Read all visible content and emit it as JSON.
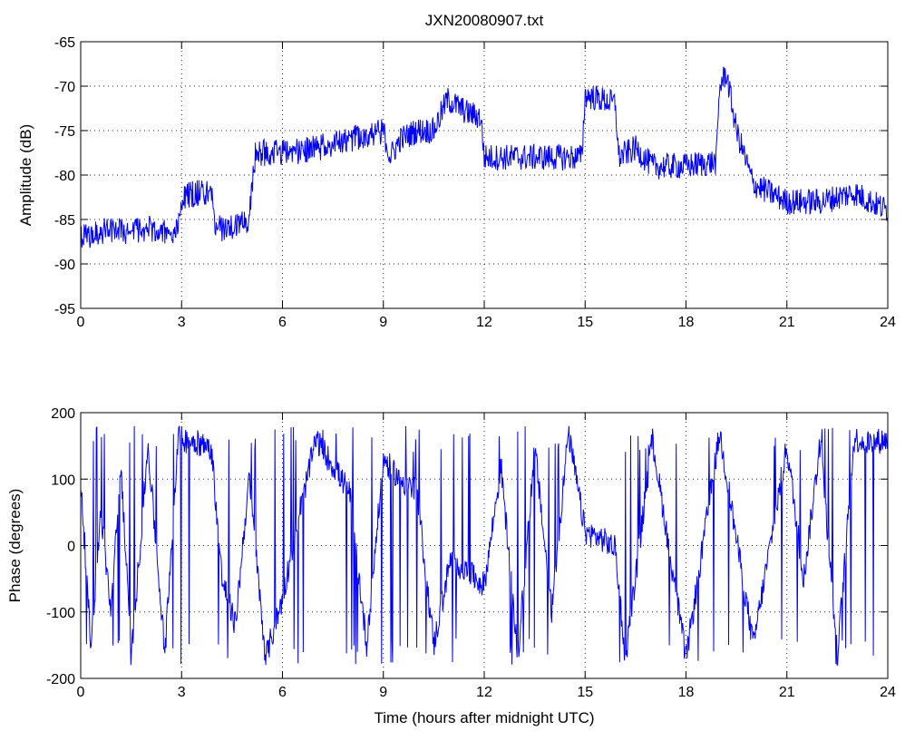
{
  "chart_data": [
    {
      "type": "line",
      "title": "JXN20080907.txt",
      "xlabel": "",
      "ylabel": "Amplitude (dB)",
      "xlim": [
        0,
        24
      ],
      "ylim": [
        -95,
        -65
      ],
      "xticks": [
        "0",
        "3",
        "6",
        "9",
        "12",
        "15",
        "18",
        "21",
        "24"
      ],
      "yticks": [
        "-65",
        "-70",
        "-75",
        "-80",
        "-85",
        "-90",
        "-95"
      ],
      "grid": true,
      "color": "#0000ff",
      "x": [
        0,
        0.5,
        1,
        1.5,
        2,
        2.5,
        2.9,
        3.0,
        3.5,
        3.9,
        4.0,
        4.5,
        5.0,
        5.2,
        5.5,
        6,
        7,
        8,
        9,
        9.2,
        9.5,
        10,
        10.5,
        10.9,
        11.1,
        11.5,
        11.9,
        12.0,
        13,
        14,
        14.9,
        15.0,
        15.5,
        15.9,
        16.0,
        16.5,
        17,
        18,
        18.9,
        19.0,
        19.2,
        19.5,
        20,
        21,
        22,
        23,
        24
      ],
      "series": [
        {
          "values": [
            -87,
            -86.5,
            -86,
            -86.5,
            -86,
            -86.5,
            -86,
            -82.5,
            -82,
            -82,
            -86,
            -86,
            -85,
            -77.5,
            -77.5,
            -77.5,
            -77,
            -76,
            -75,
            -78,
            -76,
            -75,
            -75,
            -71.5,
            -72,
            -73,
            -73.5,
            -78,
            -78,
            -78,
            -78,
            -71,
            -71.5,
            -72,
            -78,
            -77,
            -79,
            -79,
            -78.5,
            -70,
            -68.5,
            -75,
            -81,
            -83,
            -83,
            -82,
            -84
          ]
        }
      ]
    },
    {
      "type": "line",
      "title": "",
      "xlabel": "Time (hours after midnight UTC)",
      "ylabel": "Phase (degrees)",
      "xlim": [
        0,
        24
      ],
      "ylim": [
        -200,
        200
      ],
      "xticks": [
        "0",
        "3",
        "6",
        "9",
        "12",
        "15",
        "18",
        "21",
        "24"
      ],
      "yticks": [
        "200",
        "100",
        "0",
        "-100",
        "-200"
      ],
      "grid": true,
      "color": "#0000ff",
      "x": [
        0,
        0.3,
        0.6,
        0.9,
        1.2,
        1.5,
        2.0,
        2.5,
        2.9,
        3.0,
        3.5,
        3.9,
        4.2,
        4.6,
        5.0,
        5.5,
        6.0,
        6.5,
        7.0,
        7.5,
        8.0,
        8.5,
        9.0,
        9.5,
        10.0,
        10.5,
        11.0,
        11.5,
        12.0,
        12.5,
        13.0,
        13.5,
        14.0,
        14.5,
        15.0,
        15.5,
        15.9,
        16.2,
        17.0,
        18.0,
        19.0,
        20.0,
        21.0,
        21.5,
        22.0,
        22.5,
        23.0,
        23.5,
        24.0
      ],
      "series": [
        {
          "values": [
            100,
            -150,
            50,
            -100,
            120,
            -170,
            150,
            -160,
            170,
            160,
            155,
            140,
            -50,
            -120,
            100,
            -170,
            -80,
            50,
            160,
            120,
            80,
            -150,
            130,
            100,
            80,
            -150,
            -20,
            -40,
            -60,
            120,
            -170,
            150,
            -100,
            170,
            20,
            10,
            -5,
            -170,
            160,
            -170,
            170,
            -150,
            150,
            -50,
            160,
            -170,
            160,
            155,
            160
          ]
        }
      ]
    }
  ]
}
